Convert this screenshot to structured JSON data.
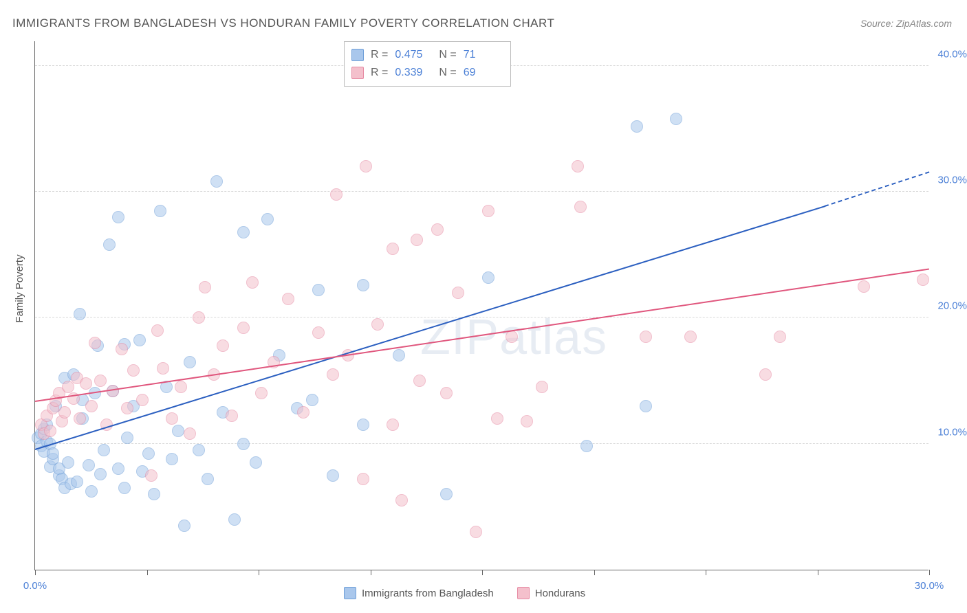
{
  "title": "IMMIGRANTS FROM BANGLADESH VS HONDURAN FAMILY POVERTY CORRELATION CHART",
  "source": "Source: ZipAtlas.com",
  "y_axis_title": "Family Poverty",
  "watermark": "ZIPatlas",
  "chart": {
    "type": "scatter",
    "xlim": [
      0,
      30
    ],
    "ylim": [
      0,
      42
    ],
    "x_ticks": [
      0,
      3.75,
      7.5,
      11.25,
      15,
      18.75,
      22.5,
      26.25,
      30
    ],
    "x_tick_labels": {
      "0": "0.0%",
      "30": "30.0%"
    },
    "y_gridlines": [
      10,
      20,
      30,
      40
    ],
    "y_tick_labels": {
      "10": "10.0%",
      "20": "20.0%",
      "30": "30.0%",
      "40": "40.0%"
    },
    "background_color": "#ffffff",
    "grid_color": "#d8d8d8",
    "axis_color": "#666666",
    "tick_label_color": "#4a7fd6",
    "marker_radius": 9,
    "marker_opacity": 0.55,
    "series": [
      {
        "name": "Immigrants from Bangladesh",
        "color_fill": "#a9c7ec",
        "color_stroke": "#6f9fd8",
        "legend_swatch": "#a9c7ec",
        "stats": {
          "R": "0.475",
          "N": "71"
        },
        "trend": {
          "x1": 0,
          "y1": 9.5,
          "x2": 26.5,
          "y2": 28.8,
          "color": "#2b5fc0",
          "dash_extend_to_x": 30,
          "dash_extend_to_y": 31.5
        },
        "points": [
          [
            0.1,
            10.5
          ],
          [
            0.2,
            9.8
          ],
          [
            0.2,
            10.8
          ],
          [
            0.3,
            11.2
          ],
          [
            0.3,
            9.4
          ],
          [
            0.4,
            10.2
          ],
          [
            0.4,
            11.5
          ],
          [
            0.5,
            10.0
          ],
          [
            0.5,
            8.2
          ],
          [
            0.6,
            8.8
          ],
          [
            0.6,
            9.2
          ],
          [
            0.7,
            13.0
          ],
          [
            0.8,
            7.5
          ],
          [
            0.8,
            8.0
          ],
          [
            0.9,
            7.2
          ],
          [
            1.0,
            6.5
          ],
          [
            1.0,
            15.2
          ],
          [
            1.1,
            8.5
          ],
          [
            1.2,
            6.8
          ],
          [
            1.3,
            15.5
          ],
          [
            1.4,
            7.0
          ],
          [
            1.5,
            20.3
          ],
          [
            1.6,
            12.0
          ],
          [
            1.6,
            13.5
          ],
          [
            1.8,
            8.3
          ],
          [
            1.9,
            6.2
          ],
          [
            2.0,
            14.0
          ],
          [
            2.1,
            17.8
          ],
          [
            2.2,
            7.6
          ],
          [
            2.3,
            9.5
          ],
          [
            2.5,
            25.8
          ],
          [
            2.6,
            14.2
          ],
          [
            2.8,
            28.0
          ],
          [
            2.8,
            8.0
          ],
          [
            3.0,
            6.5
          ],
          [
            3.0,
            17.9
          ],
          [
            3.1,
            10.5
          ],
          [
            3.3,
            13.0
          ],
          [
            3.5,
            18.2
          ],
          [
            3.6,
            7.8
          ],
          [
            3.8,
            9.2
          ],
          [
            4.0,
            6.0
          ],
          [
            4.2,
            28.5
          ],
          [
            4.4,
            14.5
          ],
          [
            4.6,
            8.8
          ],
          [
            4.8,
            11.0
          ],
          [
            5.0,
            3.5
          ],
          [
            5.2,
            16.5
          ],
          [
            5.5,
            9.5
          ],
          [
            5.8,
            7.2
          ],
          [
            6.1,
            30.8
          ],
          [
            6.3,
            12.5
          ],
          [
            6.7,
            4.0
          ],
          [
            7.0,
            26.8
          ],
          [
            7.0,
            10.0
          ],
          [
            7.4,
            8.5
          ],
          [
            7.8,
            27.8
          ],
          [
            8.2,
            17.0
          ],
          [
            8.8,
            12.8
          ],
          [
            9.3,
            13.5
          ],
          [
            9.5,
            22.2
          ],
          [
            10.0,
            7.5
          ],
          [
            11.0,
            11.5
          ],
          [
            11.0,
            22.6
          ],
          [
            12.2,
            17.0
          ],
          [
            13.8,
            6.0
          ],
          [
            15.2,
            23.2
          ],
          [
            18.5,
            9.8
          ],
          [
            20.2,
            35.2
          ],
          [
            21.5,
            35.8
          ],
          [
            20.5,
            13.0
          ]
        ]
      },
      {
        "name": "Hondurans",
        "color_fill": "#f4c0cc",
        "color_stroke": "#e68aa3",
        "legend_swatch": "#f4c0cc",
        "stats": {
          "R": "0.339",
          "N": "69"
        },
        "trend": {
          "x1": 0,
          "y1": 13.3,
          "x2": 30,
          "y2": 23.8,
          "color": "#e0567d"
        },
        "points": [
          [
            0.2,
            11.5
          ],
          [
            0.3,
            10.8
          ],
          [
            0.4,
            12.2
          ],
          [
            0.5,
            11.0
          ],
          [
            0.6,
            12.8
          ],
          [
            0.7,
            13.4
          ],
          [
            0.8,
            14.0
          ],
          [
            0.9,
            11.8
          ],
          [
            1.0,
            12.5
          ],
          [
            1.1,
            14.5
          ],
          [
            1.3,
            13.6
          ],
          [
            1.4,
            15.2
          ],
          [
            1.5,
            12.0
          ],
          [
            1.7,
            14.8
          ],
          [
            1.9,
            13.0
          ],
          [
            2.0,
            18.0
          ],
          [
            2.2,
            15.0
          ],
          [
            2.4,
            11.5
          ],
          [
            2.6,
            14.2
          ],
          [
            2.9,
            17.5
          ],
          [
            3.1,
            12.8
          ],
          [
            3.3,
            15.8
          ],
          [
            3.6,
            13.5
          ],
          [
            3.9,
            7.5
          ],
          [
            4.1,
            19.0
          ],
          [
            4.3,
            16.0
          ],
          [
            4.6,
            12.0
          ],
          [
            4.9,
            14.5
          ],
          [
            5.2,
            10.8
          ],
          [
            5.5,
            20.0
          ],
          [
            5.7,
            22.4
          ],
          [
            6.0,
            15.5
          ],
          [
            6.3,
            17.8
          ],
          [
            6.6,
            12.2
          ],
          [
            7.0,
            19.2
          ],
          [
            7.3,
            22.8
          ],
          [
            7.6,
            14.0
          ],
          [
            8.0,
            16.5
          ],
          [
            8.5,
            21.5
          ],
          [
            9.0,
            12.5
          ],
          [
            9.5,
            18.8
          ],
          [
            10.0,
            15.5
          ],
          [
            10.1,
            29.8
          ],
          [
            10.5,
            17.0
          ],
          [
            11.0,
            7.2
          ],
          [
            11.1,
            32.0
          ],
          [
            11.5,
            19.5
          ],
          [
            12.0,
            11.5
          ],
          [
            12.0,
            25.5
          ],
          [
            12.3,
            5.5
          ],
          [
            12.8,
            26.2
          ],
          [
            12.9,
            15.0
          ],
          [
            13.5,
            27.0
          ],
          [
            13.8,
            14.0
          ],
          [
            14.2,
            22.0
          ],
          [
            14.8,
            3.0
          ],
          [
            15.2,
            28.5
          ],
          [
            15.5,
            12.0
          ],
          [
            16.0,
            18.5
          ],
          [
            16.5,
            11.8
          ],
          [
            17.0,
            14.5
          ],
          [
            18.2,
            32.0
          ],
          [
            18.3,
            28.8
          ],
          [
            20.5,
            18.5
          ],
          [
            22.0,
            18.5
          ],
          [
            24.5,
            15.5
          ],
          [
            25.0,
            18.5
          ],
          [
            27.8,
            22.5
          ],
          [
            29.8,
            23.0
          ]
        ]
      }
    ]
  },
  "bottom_legend": [
    {
      "label": "Immigrants from Bangladesh",
      "color": "#a9c7ec",
      "stroke": "#6f9fd8"
    },
    {
      "label": "Hondurans",
      "color": "#f4c0cc",
      "stroke": "#e68aa3"
    }
  ]
}
